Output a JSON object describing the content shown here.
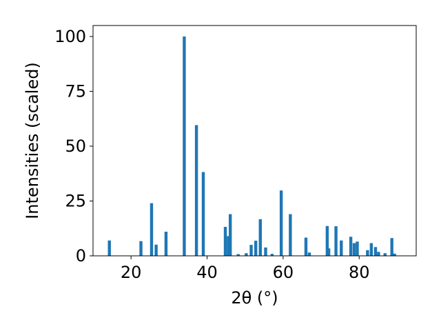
{
  "chart_data": {
    "type": "bar",
    "xlabel": "2θ (°)",
    "ylabel": "Intensities (scaled)",
    "xlim": [
      10,
      95
    ],
    "ylim": [
      0,
      105
    ],
    "x_ticks": [
      20,
      40,
      60,
      80
    ],
    "y_ticks": [
      0,
      25,
      50,
      75,
      100
    ],
    "x_tick_labels": [
      "20",
      "40",
      "60",
      "80"
    ],
    "y_tick_labels": [
      "0",
      "25",
      "50",
      "75",
      "100"
    ],
    "grid": false,
    "bar_color": "#1f77b4",
    "bar_width": 0.8,
    "bars": [
      {
        "x": 14.3,
        "y": 7.0
      },
      {
        "x": 22.6,
        "y": 6.7
      },
      {
        "x": 25.4,
        "y": 24.0
      },
      {
        "x": 26.6,
        "y": 5.1
      },
      {
        "x": 29.2,
        "y": 11.0
      },
      {
        "x": 34.0,
        "y": 100.0
      },
      {
        "x": 37.2,
        "y": 59.6
      },
      {
        "x": 39.0,
        "y": 38.2
      },
      {
        "x": 44.8,
        "y": 13.2
      },
      {
        "x": 45.6,
        "y": 9.0
      },
      {
        "x": 46.1,
        "y": 19.0
      },
      {
        "x": 48.2,
        "y": 0.8
      },
      {
        "x": 50.3,
        "y": 1.2
      },
      {
        "x": 51.6,
        "y": 5.0
      },
      {
        "x": 52.8,
        "y": 6.9
      },
      {
        "x": 54.0,
        "y": 16.7
      },
      {
        "x": 55.4,
        "y": 3.8
      },
      {
        "x": 57.1,
        "y": 0.9
      },
      {
        "x": 59.5,
        "y": 29.8
      },
      {
        "x": 61.9,
        "y": 19.0
      },
      {
        "x": 66.0,
        "y": 8.3
      },
      {
        "x": 66.9,
        "y": 1.5
      },
      {
        "x": 71.6,
        "y": 13.6
      },
      {
        "x": 72.0,
        "y": 3.4
      },
      {
        "x": 73.9,
        "y": 13.5
      },
      {
        "x": 75.3,
        "y": 7.0
      },
      {
        "x": 77.8,
        "y": 8.7
      },
      {
        "x": 78.7,
        "y": 5.8
      },
      {
        "x": 79.5,
        "y": 6.5
      },
      {
        "x": 82.2,
        "y": 2.6
      },
      {
        "x": 83.2,
        "y": 5.8
      },
      {
        "x": 84.3,
        "y": 4.0
      },
      {
        "x": 85.1,
        "y": 1.8
      },
      {
        "x": 86.8,
        "y": 1.2
      },
      {
        "x": 88.6,
        "y": 8.1
      },
      {
        "x": 89.3,
        "y": 1.0
      }
    ]
  }
}
